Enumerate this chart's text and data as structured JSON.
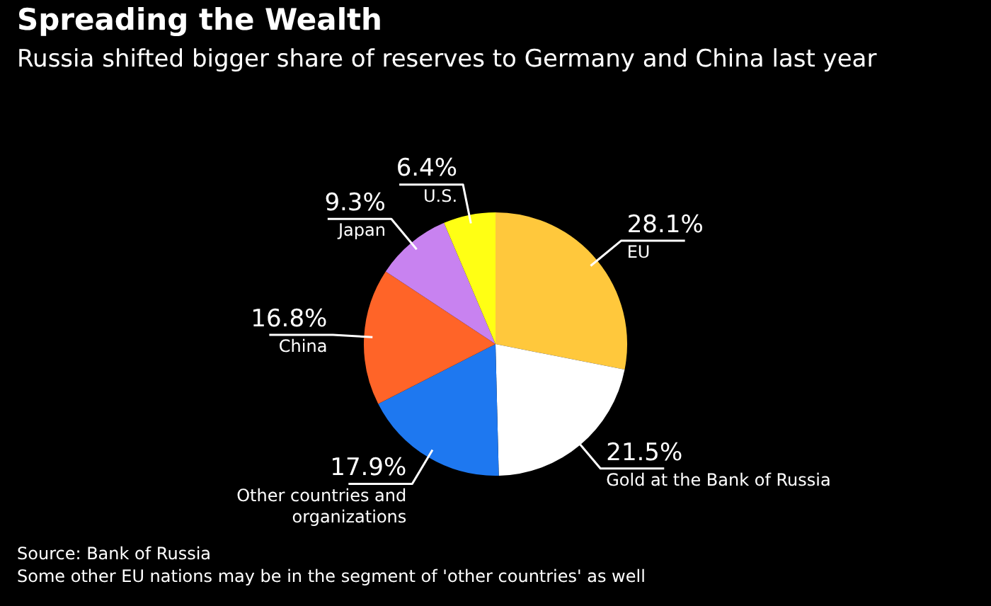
{
  "chart_data": {
    "type": "pie",
    "title": "Spreading the Wealth",
    "subtitle": "Russia shifted bigger share of reserves to Germany and China last year",
    "categories": [
      "EU",
      "Gold at the Bank of Russia",
      "Other countries and organizations",
      "China",
      "Japan",
      "U.S."
    ],
    "values": [
      28.1,
      21.5,
      17.9,
      16.8,
      9.3,
      6.4
    ],
    "value_labels": [
      "28.1%",
      "21.5%",
      "17.9%",
      "16.8%",
      "9.3%",
      "6.4%"
    ],
    "colors": [
      "#ffc83c",
      "#ffffff",
      "#1e78f0",
      "#ff6428",
      "#c882f0",
      "#ffff14"
    ],
    "legend": false,
    "annotations": [
      "Source: Bank of Russia",
      "Some other EU nations may be in the segment of 'other countries' as well"
    ]
  }
}
